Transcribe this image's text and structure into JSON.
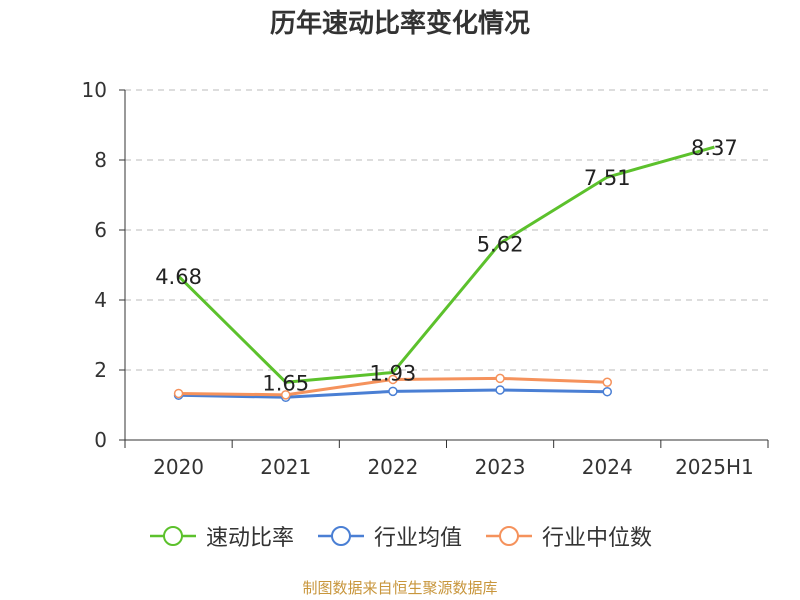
{
  "chart_data": {
    "type": "line",
    "title": "历年速动比率变化情况",
    "categories": [
      "2020",
      "2021",
      "2022",
      "2023",
      "2024",
      "2025H1"
    ],
    "ylim": [
      0,
      10
    ],
    "yticks": [
      0,
      2,
      4,
      6,
      8,
      10
    ],
    "grid": true,
    "legend_position": "bottom",
    "series": [
      {
        "name": "速动比率",
        "color": "#5cc12c",
        "values": [
          4.68,
          1.65,
          1.93,
          5.62,
          7.51,
          8.37
        ],
        "labels": [
          "4.68",
          "1.65",
          "1.93",
          "5.62",
          "7.51",
          "8.37"
        ]
      },
      {
        "name": "行业均值",
        "color": "#4a7fd4",
        "values": [
          1.28,
          1.22,
          1.39,
          1.43,
          1.38,
          null
        ]
      },
      {
        "name": "行业中位数",
        "color": "#f5925c",
        "values": [
          1.33,
          1.29,
          1.73,
          1.76,
          1.65,
          null
        ]
      }
    ]
  },
  "source": "制图数据来自恒生聚源数据库"
}
